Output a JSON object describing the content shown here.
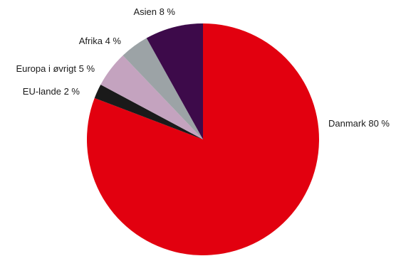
{
  "chart_data": {
    "type": "pie",
    "title": "",
    "legend": "none",
    "unit": "%",
    "start": "12 o'clock",
    "direction": "clockwise",
    "slices": [
      {
        "label": "Danmark 80 %",
        "value": 80,
        "color": "#e2000f"
      },
      {
        "label": "EU-lande 2 %",
        "value": 2,
        "color": "#1a1a1a"
      },
      {
        "label": "Europa i øvrigt 5 %",
        "value": 5,
        "color": "#c4a3bf"
      },
      {
        "label": "Afrika 4 %",
        "value": 4,
        "color": "#9ca3a6"
      },
      {
        "label": "Asien 8 %",
        "value": 8,
        "color": "#3d0a4a"
      }
    ]
  }
}
